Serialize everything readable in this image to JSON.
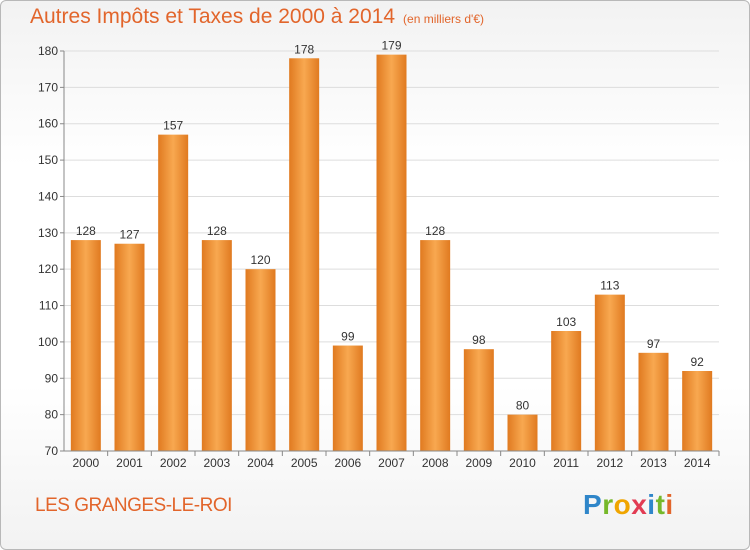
{
  "header": {
    "title": "Autres Impôts et Taxes de 2000 à 2014",
    "subtitle": "(en milliers d'€)"
  },
  "footer": {
    "commune": "LES GRANGES-LE-ROI",
    "logo_text": "Proxiti"
  },
  "colors": {
    "accent": "#e2652b",
    "bar_light": "#f8a850",
    "bar_dark": "#e07a20"
  },
  "chart_data": {
    "type": "bar",
    "categories": [
      "2000",
      "2001",
      "2002",
      "2003",
      "2004",
      "2005",
      "2006",
      "2007",
      "2008",
      "2009",
      "2010",
      "2011",
      "2012",
      "2013",
      "2014"
    ],
    "values": [
      128,
      127,
      157,
      128,
      120,
      178,
      99,
      179,
      128,
      98,
      80,
      103,
      113,
      97,
      92
    ],
    "title": "Autres Impôts et Taxes de 2000 à 2014",
    "subtitle": "(en milliers d'€)",
    "xlabel": "",
    "ylabel": "",
    "ylim": [
      70,
      180
    ],
    "yticks": [
      70,
      80,
      90,
      100,
      110,
      120,
      130,
      140,
      150,
      160,
      170,
      180
    ],
    "grid": true
  }
}
